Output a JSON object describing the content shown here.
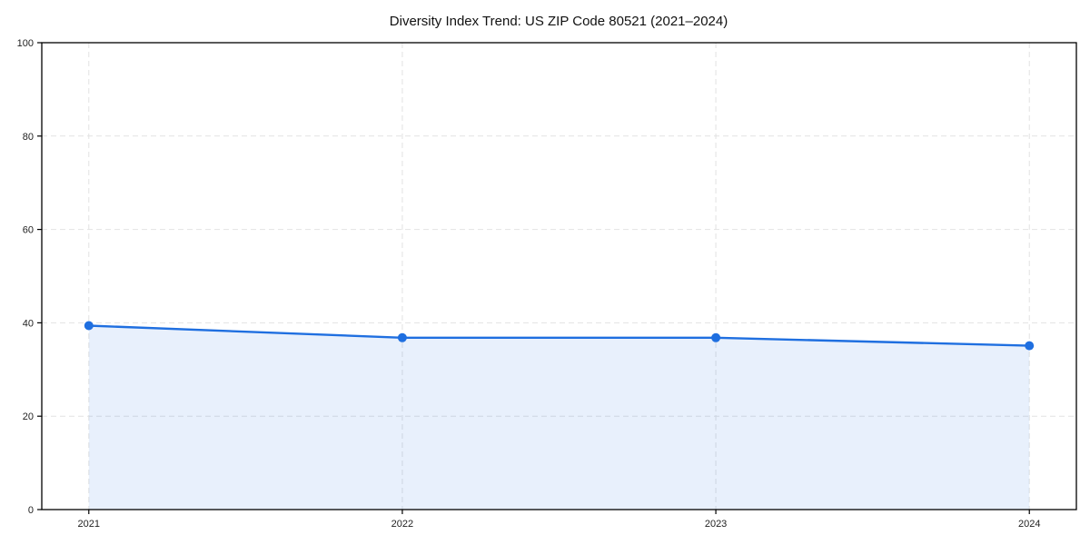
{
  "chart_data": {
    "type": "area",
    "title": "Diversity Index Trend: US ZIP Code 80521 (2021–2024)",
    "x": [
      "2021",
      "2022",
      "2023",
      "2024"
    ],
    "series": [
      {
        "name": "Diversity Index",
        "values": [
          39.4,
          36.8,
          36.8,
          35.1
        ]
      }
    ],
    "xlabel": "",
    "ylabel": "",
    "ylim": [
      0,
      100
    ],
    "yticks": [
      0,
      20,
      40,
      60,
      80,
      100
    ],
    "grid": true,
    "grid_style": "dashed",
    "legend_position": "none",
    "colors": {
      "line": "#1f6fe0",
      "marker": "#1f6fe0",
      "area_opacity": 0.1,
      "grid": "#e2e2e2",
      "spine": "#000000",
      "title_text": "#111111",
      "tick_text": "#222222",
      "background": "#ffffff"
    }
  }
}
